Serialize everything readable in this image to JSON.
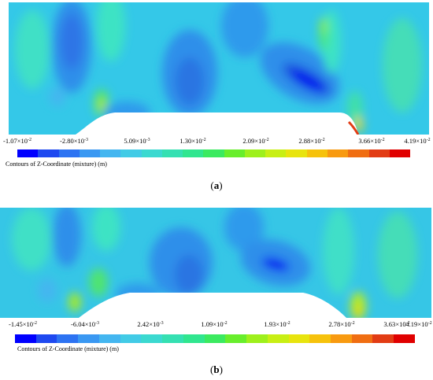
{
  "chart_data": [
    {
      "type": "heatmap",
      "panel_label": "a",
      "colorbar_caption": "Contours of Z-Coordinate (mixture) (m)",
      "tick_labels": [
        "-1.07×10-2",
        "-2.80×10-3",
        "5.09×10-3",
        "1.30×10-2",
        "2.09×10-2",
        "2.88×10-2",
        "3.66×10-2",
        "4.19×10-2"
      ],
      "tick_values": [
        -0.0107,
        -0.0028,
        0.00509,
        0.013,
        0.0209,
        0.0288,
        0.0366,
        0.0419
      ],
      "range": [
        -0.0107,
        0.0419
      ],
      "colormap": [
        "#0000ff",
        "#1e49f0",
        "#2d73f2",
        "#3a98f2",
        "#44b6f0",
        "#42cbe6",
        "#3bd9d0",
        "#35e0b2",
        "#30e68f",
        "#3bea60",
        "#68ee2c",
        "#9ef01c",
        "#c8ef14",
        "#e8e40e",
        "#f6c20c",
        "#f89a10",
        "#f06e12",
        "#e23c14",
        "#e00000"
      ]
    },
    {
      "type": "heatmap",
      "panel_label": "b",
      "colorbar_caption": "Contours of Z-Coordinate (mixture) (m)",
      "tick_labels": [
        "-1.45×10-2",
        "-6.04×10-3",
        "2.42×10-3",
        "1.09×10-2",
        "1.93×10-2",
        "2.78×10-2",
        "3.63×10-2",
        "4.19×10-2"
      ],
      "tick_values": [
        -0.0145,
        -0.00604,
        0.00242,
        0.0109,
        0.0193,
        0.0278,
        0.0363,
        0.0419
      ],
      "range": [
        -0.0145,
        0.0419
      ],
      "colormap": [
        "#0000ff",
        "#1e49f0",
        "#2d73f2",
        "#3a98f2",
        "#44b6f0",
        "#42cbe6",
        "#3bd9d0",
        "#35e0b2",
        "#30e68f",
        "#3bea60",
        "#68ee2c",
        "#9ef01c",
        "#c8ef14",
        "#e8e40e",
        "#f6c20c",
        "#f89a10",
        "#f06e12",
        "#e23c14",
        "#e00000"
      ]
    }
  ],
  "panels": {
    "a": {
      "label": "a",
      "caption": "Contours of Z-Coordinate (mixture) (m)"
    },
    "b": {
      "label": "b",
      "caption": "Contours of Z-Coordinate (mixture) (m)"
    }
  }
}
